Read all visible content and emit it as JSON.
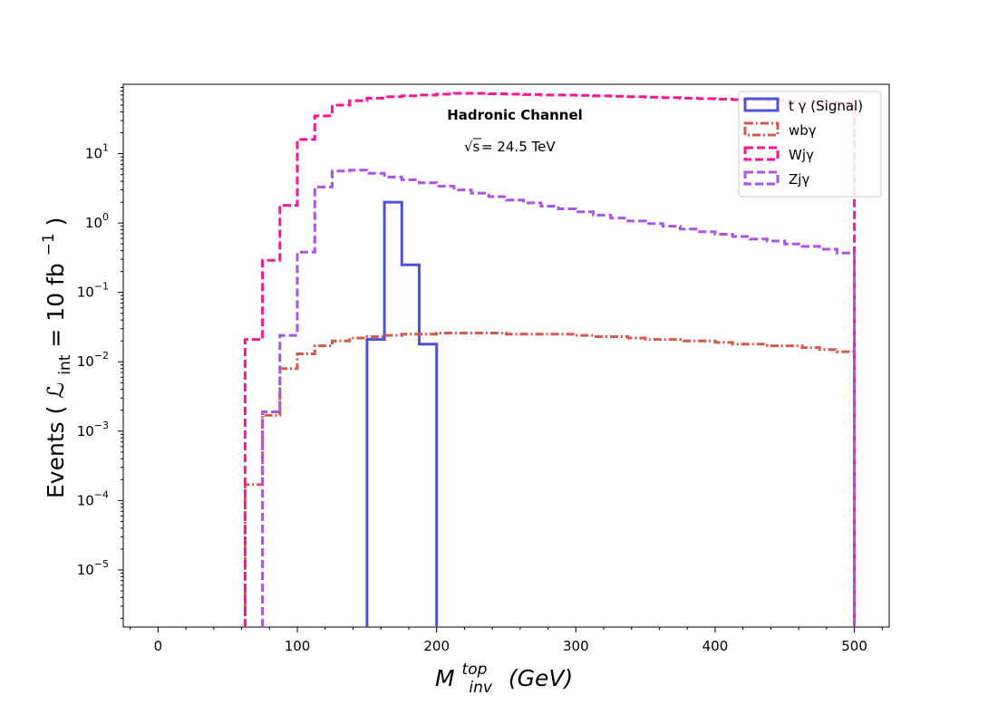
{
  "chart_data": {
    "type": "step-histogram",
    "annotations": {
      "channel": "Hadronic Channel",
      "energy_prefix": "√s",
      "energy_value": " = 24.5 TeV"
    },
    "xlabel": {
      "main": "M",
      "sup": "top",
      "sub": "inv",
      "unit": "(GeV)"
    },
    "ylabel": {
      "prefix": "Events (",
      "L": "ℒ",
      "sub": "int",
      "mid": " = 10 fb",
      "sup": "−1",
      "suffix": ")"
    },
    "x_ticks": [
      "0",
      "100",
      "200",
      "300",
      "400",
      "500"
    ],
    "x_tick_values": [
      0,
      100,
      200,
      300,
      400,
      500
    ],
    "y_ticks": [
      {
        "base": "10",
        "exp": "1",
        "value": 10
      },
      {
        "base": "10",
        "exp": "0",
        "value": 1
      },
      {
        "base": "10",
        "exp": "−1",
        "value": 0.1
      },
      {
        "base": "10",
        "exp": "−2",
        "value": 0.01
      },
      {
        "base": "10",
        "exp": "−3",
        "value": 0.001
      },
      {
        "base": "10",
        "exp": "−4",
        "value": 0.0001
      },
      {
        "base": "10",
        "exp": "−5",
        "value": 1e-05
      }
    ],
    "xlim": [
      -25,
      525
    ],
    "ylim": [
      1.5e-06,
      100
    ],
    "yscale": "log",
    "bin_edges": [
      62.5,
      75,
      87.5,
      100,
      112.5,
      125,
      137.5,
      150,
      162.5,
      175,
      187.5,
      200,
      212.5,
      225,
      237.5,
      250,
      262.5,
      275,
      287.5,
      300,
      312.5,
      325,
      337.5,
      350,
      362.5,
      375,
      387.5,
      400,
      412.5,
      425,
      437.5,
      450,
      462.5,
      475,
      487.5,
      500
    ],
    "legend_position": "top-right",
    "series": [
      {
        "name": "t γ (Signal)",
        "color": "#5050d8",
        "style": "solid",
        "edges": [
          150,
          162.5,
          175,
          187.5,
          200
        ],
        "values": [
          0.021,
          2.0,
          0.25,
          0.018
        ]
      },
      {
        "name": "wbγ",
        "color": "#d9574a",
        "style": "dashdot",
        "values": [
          0.00017,
          0.0017,
          0.008,
          0.013,
          0.017,
          0.02,
          0.022,
          0.023,
          0.024,
          0.025,
          0.025,
          0.026,
          0.026,
          0.026,
          0.026,
          0.025,
          0.025,
          0.025,
          0.025,
          0.024,
          0.023,
          0.023,
          0.022,
          0.021,
          0.021,
          0.02,
          0.02,
          0.019,
          0.018,
          0.018,
          0.017,
          0.017,
          0.016,
          0.015,
          0.014
        ]
      },
      {
        "name": "Wjγ",
        "color": "#ff1493",
        "style": "dashed",
        "values": [
          0.021,
          0.29,
          1.8,
          16,
          35,
          50,
          58,
          63,
          66,
          68,
          70,
          72,
          74,
          74,
          73,
          72,
          71,
          70,
          70,
          69,
          68,
          67,
          66,
          65,
          64,
          63,
          62,
          61,
          60,
          59,
          58,
          57,
          56,
          55,
          54
        ]
      },
      {
        "name": "Zjγ",
        "color": "#a855e8",
        "style": "dashed",
        "values": [
          null,
          0.0019,
          0.024,
          0.38,
          3.3,
          5.6,
          5.8,
          5.2,
          4.6,
          4.2,
          3.8,
          3.4,
          3.0,
          2.7,
          2.4,
          2.15,
          1.95,
          1.75,
          1.6,
          1.45,
          1.3,
          1.18,
          1.07,
          0.98,
          0.9,
          0.82,
          0.75,
          0.69,
          0.64,
          0.59,
          0.55,
          0.5,
          0.46,
          0.42,
          0.37
        ]
      }
    ]
  }
}
